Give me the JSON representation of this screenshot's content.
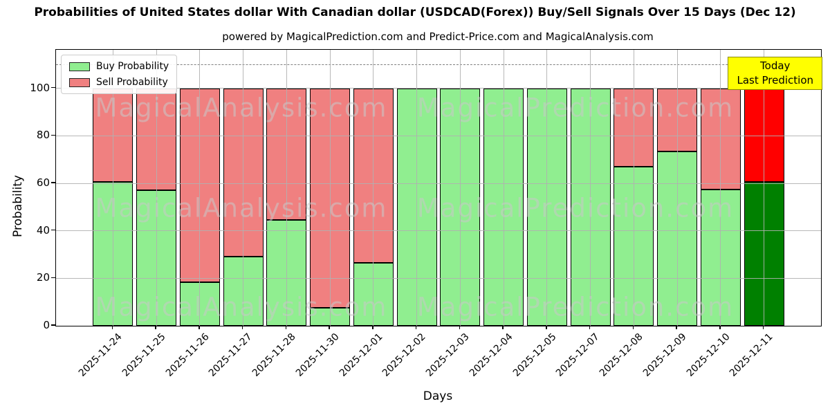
{
  "title": "Probabilities of United States dollar With Canadian dollar (USDCAD(Forex)) Buy/Sell Signals Over 15 Days (Dec 12)",
  "subtitle": "powered by MagicalPrediction.com and Predict-Price.com and MagicalAnalysis.com",
  "legend": {
    "buy_label": "Buy Probability",
    "sell_label": "Sell Probability"
  },
  "annotation": {
    "line1": "Today",
    "line2": "Last Prediction",
    "background": "#ffff00"
  },
  "watermarks": {
    "left": "MagicalAnalysis.com",
    "right": "MagicalPrediction.com"
  },
  "axes": {
    "ylabel": "Probability",
    "xlabel": "Days",
    "yticks": [
      0,
      20,
      40,
      60,
      80,
      100
    ],
    "ylim": [
      0,
      116
    ],
    "dashed_line_y": 110,
    "grid": true
  },
  "colors": {
    "buy": "#90EE90",
    "sell": "#F08080",
    "today_buy": "#008000",
    "today_sell": "#FF0000",
    "bar_edge": "#000000",
    "grid": "#b0b0b0",
    "dashed_line": "#7f7f7f"
  },
  "chart_data": {
    "type": "bar",
    "stacked": true,
    "title": "Probabilities of United States dollar With Canadian dollar (USDCAD(Forex)) Buy/Sell Signals Over 15 Days (Dec 12)",
    "xlabel": "Days",
    "ylabel": "Probability",
    "ylim": [
      0,
      116
    ],
    "legend_position": "upper left",
    "dashed_reference_line_y": 110,
    "categories": [
      "2025-11-24",
      "2025-11-25",
      "2025-11-26",
      "2025-11-27",
      "2025-11-28",
      "2025-11-30",
      "2025-12-01",
      "2025-12-02",
      "2025-12-03",
      "2025-12-04",
      "2025-12-05",
      "2025-12-07",
      "2025-12-08",
      "2025-12-09",
      "2025-12-10",
      "2025-12-11"
    ],
    "series": [
      {
        "name": "Buy Probability",
        "color": "#90EE90",
        "values": [
          60.5,
          57,
          18.5,
          29,
          44.5,
          7.5,
          26.5,
          100,
          100,
          100,
          100,
          100,
          67,
          73.5,
          57.5,
          60.5
        ]
      },
      {
        "name": "Sell Probability",
        "color": "#F08080",
        "values": [
          39.5,
          43,
          81.5,
          71,
          55.5,
          92.5,
          73.5,
          0,
          0,
          0,
          0,
          0,
          33,
          26.5,
          42.5,
          39.5
        ]
      }
    ],
    "today_index": 15,
    "today_colors": {
      "buy": "#008000",
      "sell": "#FF0000"
    }
  }
}
